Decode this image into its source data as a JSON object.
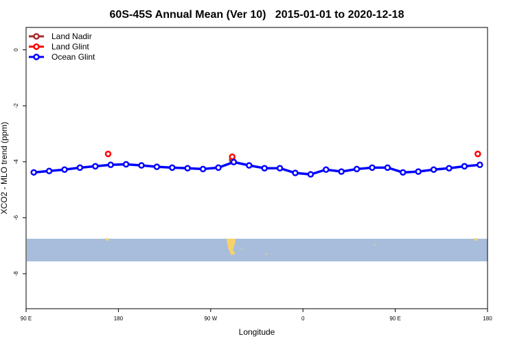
{
  "chart_data": {
    "type": "scatter",
    "title": "60S-45S Annual Mean (Ver 10)   2015-01-01 to 2020-12-18",
    "xlabel": "Longitude",
    "ylabel": "XCO2 - MLO trend (ppm)",
    "xlim": [
      90,
      540
    ],
    "ylim": [
      -9.25,
      0.8
    ],
    "xticks": [
      {
        "value": 90,
        "label": "90 E"
      },
      180,
      {
        "value": 270,
        "label": "90 W"
      },
      {
        "value": 360,
        "label": "0"
      },
      {
        "value": 450,
        "label": "90 E"
      },
      {
        "value": 540,
        "label": "180"
      }
    ],
    "yticks": [
      0,
      -2,
      -4,
      -6,
      -8
    ],
    "legend": "top-left",
    "series": [
      {
        "name": "Land Nadir",
        "color": "#a52a2a",
        "line": false,
        "x": [
          291
        ],
        "values": [
          -3.93
        ]
      },
      {
        "name": "Land Glint",
        "color": "#ff0000",
        "line": false,
        "x": [
          170,
          291,
          530.5
        ],
        "values": [
          -3.72,
          -3.82,
          -3.72
        ]
      },
      {
        "name": "Ocean Glint",
        "color": "#0000ff",
        "line": true,
        "x": [
          97.5,
          112.5,
          127.5,
          142.5,
          157.5,
          172.5,
          187.5,
          202.5,
          217.5,
          232.5,
          247.5,
          262.5,
          277.5,
          292.5,
          307.5,
          322.5,
          337.5,
          352.5,
          367.5,
          382.5,
          397.5,
          412.5,
          427.5,
          442.5,
          457.5,
          472.5,
          487.5,
          502.5,
          517.5,
          532.5
        ],
        "values": [
          -4.38,
          -4.33,
          -4.28,
          -4.21,
          -4.16,
          -4.11,
          -4.09,
          -4.13,
          -4.18,
          -4.21,
          -4.23,
          -4.26,
          -4.21,
          -4.01,
          -4.13,
          -4.23,
          -4.23,
          -4.4,
          -4.45,
          -4.28,
          -4.35,
          -4.26,
          -4.21,
          -4.21,
          -4.38,
          -4.35,
          -4.28,
          -4.23,
          -4.16,
          -4.11
        ]
      }
    ]
  }
}
